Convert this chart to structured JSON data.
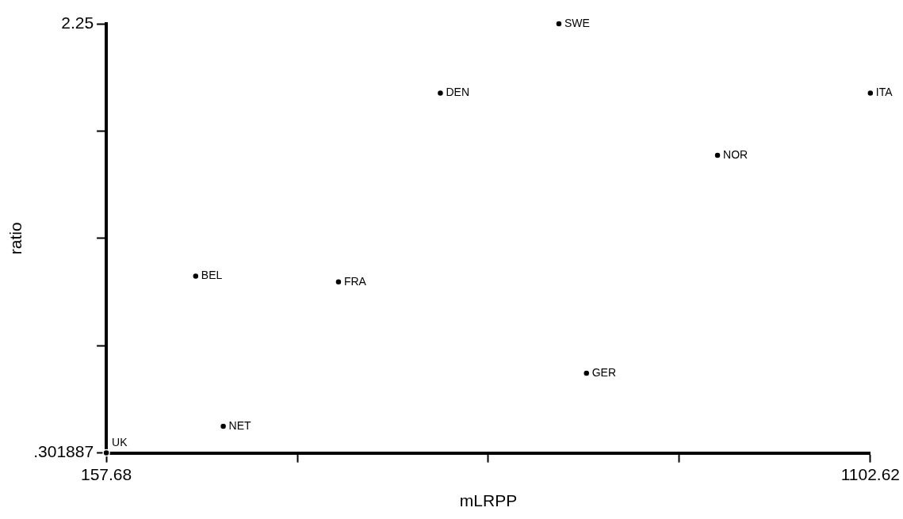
{
  "chart_data": {
    "type": "scatter",
    "xlabel": "mLRPP",
    "ylabel": "ratio",
    "marker": "circle",
    "grid": false,
    "legend": false,
    "xlim": [
      157.68,
      1102.62
    ],
    "xticks": [
      157.68,
      {
        "value": 393.915,
        "label": null
      },
      {
        "value": 630.15,
        "label": null
      },
      {
        "value": 866.385,
        "label": null
      },
      1102.62
    ],
    "ylim": [
      0.301887,
      2.25
    ],
    "yticks": [
      {
        "value": 0.301887,
        "label": ".301887"
      },
      {
        "value": 0.788915,
        "label": null
      },
      {
        "value": 1.275943,
        "label": null
      },
      {
        "value": 1.762972,
        "label": null
      },
      2.25
    ],
    "series": [
      {
        "name": "SWE",
        "color": "#000000",
        "x": [
          717.4
        ],
        "values": [
          2.25
        ]
      },
      {
        "name": "DEN",
        "color": "#000000",
        "x": [
          570.8
        ],
        "values": [
          1.935
        ]
      },
      {
        "name": "ITA",
        "color": "#000000",
        "x": [
          1102.62
        ],
        "values": [
          1.935
        ]
      },
      {
        "name": "NOR",
        "color": "#000000",
        "x": [
          913.6
        ],
        "values": [
          1.653
        ]
      },
      {
        "name": "BEL",
        "color": "#000000",
        "x": [
          268.2
        ],
        "values": [
          1.104
        ]
      },
      {
        "name": "FRA",
        "color": "#000000",
        "x": [
          444.8
        ],
        "values": [
          1.078
        ]
      },
      {
        "name": "GER",
        "color": "#000000",
        "x": [
          751.5
        ],
        "values": [
          0.664
        ]
      },
      {
        "name": "NET",
        "color": "#000000",
        "x": [
          302.3
        ],
        "values": [
          0.423
        ]
      },
      {
        "name": "UK",
        "color": "#000000",
        "x": [
          157.68
        ],
        "values": [
          0.301887
        ]
      }
    ]
  }
}
